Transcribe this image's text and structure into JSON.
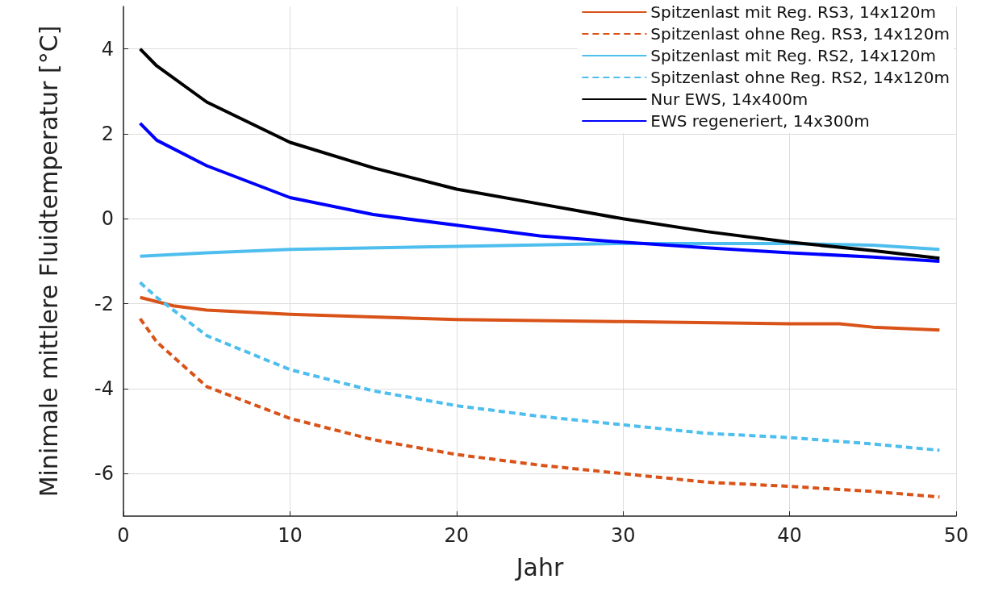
{
  "chart_data": {
    "type": "line",
    "xlabel": "Jahr",
    "ylabel": "Minimale mittlere Fluidtemperatur [°C]",
    "xlim": [
      0,
      50
    ],
    "xticks": [
      0,
      10,
      20,
      30,
      40,
      50
    ],
    "ylim": [
      -7,
      5
    ],
    "yticks": [
      -6,
      -4,
      -2,
      0,
      2,
      4
    ],
    "grid": true,
    "legend": "top right",
    "marker": "none",
    "series": [
      {
        "name": "Spitzenlast mit Reg. RS3, 14x120m",
        "color": "#d95319",
        "line_style": "solid",
        "x": [
          1,
          3,
          5,
          10,
          20,
          30,
          40,
          43,
          45,
          49
        ],
        "values": [
          -1.85,
          -2.05,
          -2.15,
          -2.25,
          -2.37,
          -2.42,
          -2.47,
          -2.47,
          -2.55,
          -2.62
        ]
      },
      {
        "name": "Spitzenlast ohne Reg. RS3, 14x120m",
        "color": "#d95319",
        "line_style": "dashed",
        "x": [
          1,
          2,
          5,
          10,
          15,
          20,
          25,
          30,
          35,
          40,
          45,
          49
        ],
        "values": [
          -2.35,
          -2.9,
          -3.95,
          -4.7,
          -5.2,
          -5.55,
          -5.8,
          -6.0,
          -6.2,
          -6.3,
          -6.42,
          -6.55
        ]
      },
      {
        "name": "Spitzenlast mit Reg. RS2, 14x120m",
        "color": "#4dbeee",
        "line_style": "solid",
        "x": [
          1,
          5,
          10,
          20,
          30,
          40,
          45,
          49
        ],
        "values": [
          -0.88,
          -0.8,
          -0.72,
          -0.65,
          -0.58,
          -0.58,
          -0.62,
          -0.72
        ]
      },
      {
        "name": "Spitzenlast ohne Reg. RS2, 14x120m",
        "color": "#4dbeee",
        "line_style": "dashed",
        "x": [
          1,
          2,
          5,
          10,
          15,
          20,
          25,
          30,
          35,
          40,
          45,
          49
        ],
        "values": [
          -1.5,
          -1.85,
          -2.75,
          -3.55,
          -4.05,
          -4.4,
          -4.65,
          -4.85,
          -5.05,
          -5.15,
          -5.3,
          -5.45
        ]
      },
      {
        "name": "Nur EWS, 14x400m",
        "color": "#000000",
        "line_style": "solid",
        "x": [
          1,
          2,
          5,
          10,
          15,
          20,
          25,
          30,
          35,
          40,
          45,
          49
        ],
        "values": [
          4.0,
          3.6,
          2.75,
          1.8,
          1.2,
          0.7,
          0.35,
          0.0,
          -0.3,
          -0.55,
          -0.75,
          -0.93
        ]
      },
      {
        "name": "EWS regeneriert, 14x300m",
        "color": "#0000ff",
        "line_style": "solid",
        "x": [
          1,
          2,
          5,
          10,
          15,
          20,
          25,
          30,
          35,
          40,
          45,
          49
        ],
        "values": [
          2.25,
          1.85,
          1.25,
          0.5,
          0.1,
          -0.15,
          -0.4,
          -0.55,
          -0.68,
          -0.8,
          -0.9,
          -1.0
        ]
      }
    ]
  }
}
